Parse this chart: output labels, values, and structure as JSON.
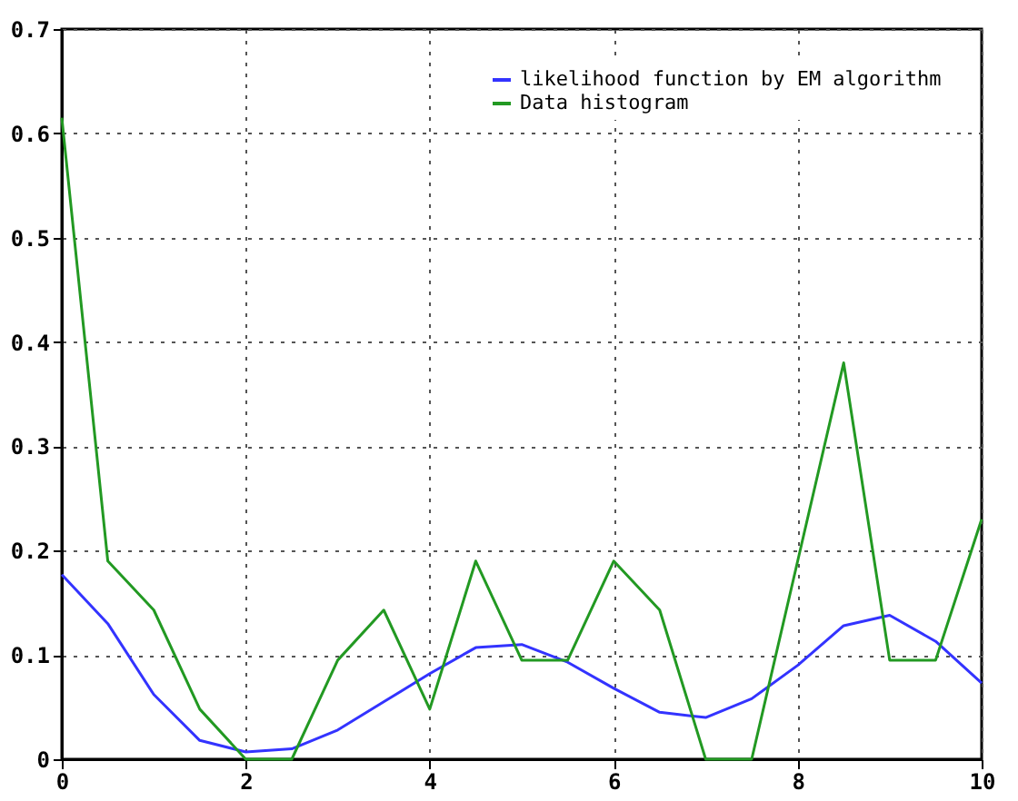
{
  "chart_data": {
    "type": "line",
    "x": [
      0,
      0.5,
      1,
      1.5,
      2,
      2.5,
      3,
      3.5,
      4,
      4.5,
      5,
      5.5,
      6,
      6.5,
      7,
      7.5,
      8,
      8.5,
      9,
      9.5,
      10
    ],
    "series": [
      {
        "name": "likelihood function by EM algorithm",
        "color": "#3333ff",
        "values": [
          0.177,
          0.13,
          0.062,
          0.018,
          0.007,
          0.01,
          0.028,
          0.055,
          0.082,
          0.107,
          0.11,
          0.093,
          0.068,
          0.045,
          0.04,
          0.058,
          0.09,
          0.128,
          0.138,
          0.113,
          0.073
        ]
      },
      {
        "name": "Data histogram",
        "color": "#229922",
        "values": [
          0.615,
          0.19,
          0.143,
          0.048,
          0,
          0,
          0.095,
          0.143,
          0.048,
          0.19,
          0.095,
          0.095,
          0.19,
          0.143,
          0,
          0,
          0.19,
          0.38,
          0.095,
          0.095,
          0.23
        ]
      }
    ],
    "xlim": [
      0,
      10
    ],
    "xticks": [
      0,
      2,
      4,
      6,
      8,
      10
    ],
    "ylim": [
      0,
      0.7
    ],
    "yticks": [
      0,
      0.1,
      0.2,
      0.3,
      0.4,
      0.5,
      0.6,
      0.7
    ],
    "grid": true,
    "legend": "top right",
    "marker": "none",
    "line_style": "solid"
  }
}
